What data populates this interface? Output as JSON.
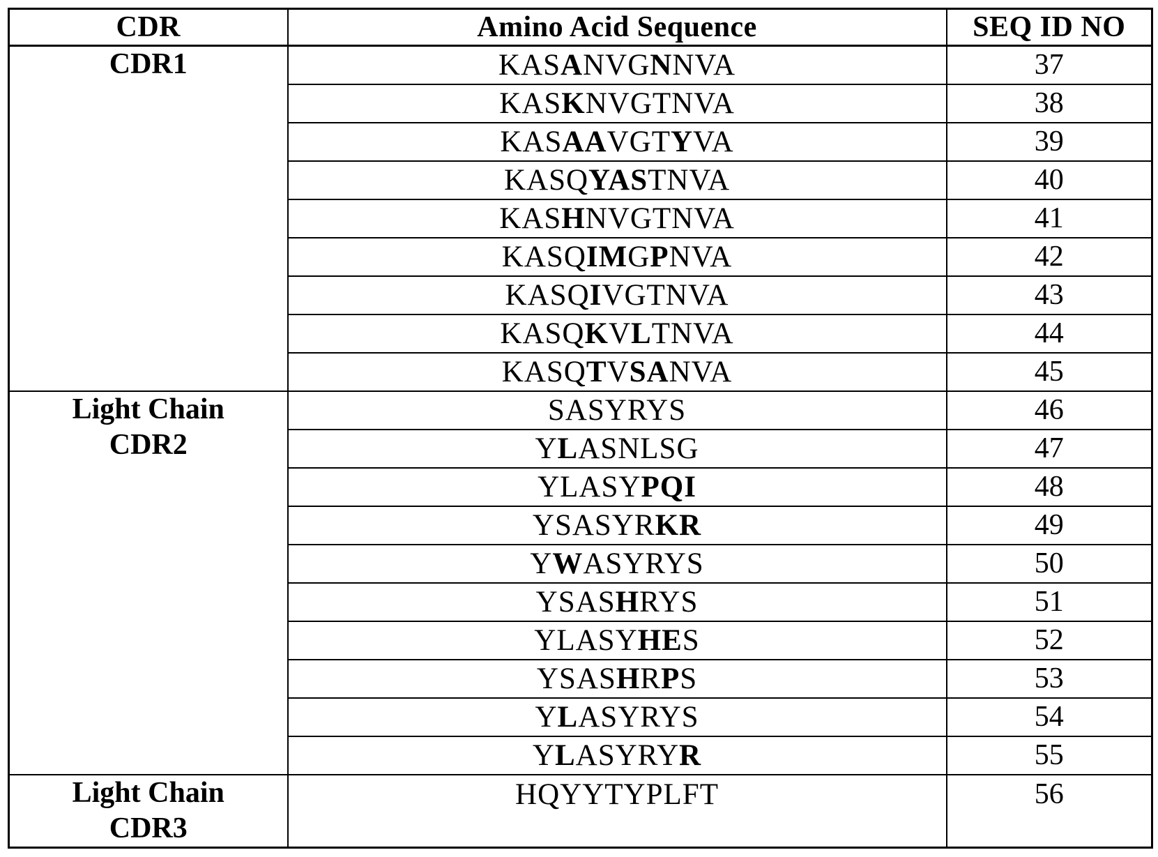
{
  "colors": {
    "border": "#000000",
    "text": "#000000",
    "background": "#ffffff"
  },
  "table": {
    "columns": [
      {
        "label": "CDR"
      },
      {
        "label": "Amino Acid Sequence"
      },
      {
        "label": "SEQ ID NO"
      }
    ],
    "groups": [
      {
        "label_lines": [
          "CDR1"
        ],
        "tall": false,
        "rows": [
          {
            "seq": "KASANVGNNVA",
            "bold": [
              3,
              7
            ],
            "id": "37"
          },
          {
            "seq": "KASKNVGTNVA",
            "bold": [
              3
            ],
            "id": "38"
          },
          {
            "seq": "KASAAVGTYVA",
            "bold": [
              3,
              4,
              8
            ],
            "id": "39"
          },
          {
            "seq": "KASQYASTNVA",
            "bold": [
              4,
              5,
              6
            ],
            "id": "40"
          },
          {
            "seq": "KASHNVGTNVA",
            "bold": [
              3
            ],
            "id": "41"
          },
          {
            "seq": "KASQIMGPNVA",
            "bold": [
              4,
              5,
              7
            ],
            "id": "42"
          },
          {
            "seq": "KASQIVGTNVA",
            "bold": [
              4
            ],
            "id": "43"
          },
          {
            "seq": "KASQKVLTNVA",
            "bold": [
              4,
              6
            ],
            "id": "44"
          },
          {
            "seq": "KASQTVSANVA",
            "bold": [
              4,
              6,
              7
            ],
            "id": "45"
          }
        ]
      },
      {
        "label_lines": [
          "Light Chain",
          "CDR2"
        ],
        "tall": false,
        "rows": [
          {
            "seq": "SASYRYS",
            "bold": [],
            "id": "46"
          },
          {
            "seq": "YLASNLSG",
            "bold": [
              1
            ],
            "id": "47"
          },
          {
            "seq": "YLASYPQI",
            "bold": [
              5,
              6,
              7
            ],
            "id": "48"
          },
          {
            "seq": "YSASYRKR",
            "bold": [
              6,
              7
            ],
            "id": "49"
          },
          {
            "seq": "YWASYRYS",
            "bold": [
              1
            ],
            "id": "50"
          },
          {
            "seq": "YSASHRYS",
            "bold": [
              4
            ],
            "id": "51"
          },
          {
            "seq": "YLASYHES",
            "bold": [
              5,
              6
            ],
            "id": "52"
          },
          {
            "seq": "YSASHRPS",
            "bold": [
              4,
              6
            ],
            "id": "53"
          },
          {
            "seq": "YLASYRYS",
            "bold": [
              1
            ],
            "id": "54"
          },
          {
            "seq": "YLASYRYR",
            "bold": [
              1,
              7
            ],
            "id": "55"
          }
        ]
      },
      {
        "label_lines": [
          "Light Chain",
          "CDR3"
        ],
        "tall": true,
        "rows": [
          {
            "seq": "HQYYTYPLFT",
            "bold": [],
            "id": "56"
          }
        ]
      }
    ]
  }
}
